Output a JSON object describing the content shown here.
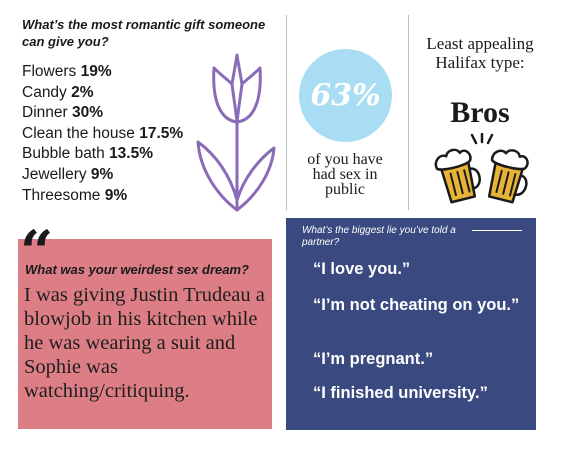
{
  "gift": {
    "question": "What’s the most romantic gift someone can give you?",
    "items": [
      {
        "label": "Flowers",
        "value": "19%"
      },
      {
        "label": "Candy",
        "value": "2%"
      },
      {
        "label": "Dinner",
        "value": "30%"
      },
      {
        "label": "Clean the house",
        "value": "17.5%"
      },
      {
        "label": "Bubble bath",
        "value": "13.5%"
      },
      {
        "label": "Jewellery",
        "value": "9%"
      },
      {
        "label": "Threesome",
        "value": "9%"
      }
    ]
  },
  "stat": {
    "value": "63%",
    "caption": "of you have had sex in public",
    "circle_color": "#a9ddf3"
  },
  "type": {
    "question": "Least appealing Halifax type:",
    "answer": "Bros",
    "icon": "beer-mugs-icon"
  },
  "dream": {
    "question": "What was your weirdest sex dream?",
    "answer": "I was giving Justin Trudeau a blowjob in his kitchen while he was wearing a suit and Sophie was watching/critiquing.",
    "box_color": "#dd7e86"
  },
  "lie": {
    "question": "What’s the biggest lie you’ve told a partner?",
    "answers": [
      "“I love you.”",
      "“I’m not cheating on you.”",
      "“I’m pregnant.”",
      "“I finished university.”"
    ],
    "box_color": "#3a4a80"
  }
}
